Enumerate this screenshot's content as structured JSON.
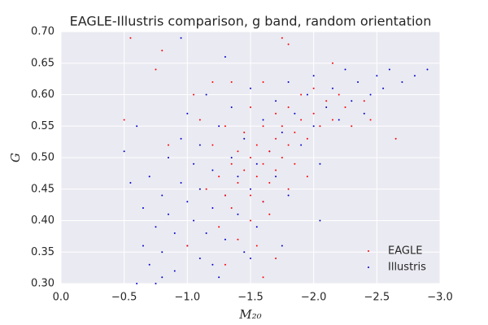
{
  "chart_data": {
    "type": "scatter",
    "title": "EAGLE-Illustris comparison, g band, random orientation",
    "xlabel": "M₂₀",
    "ylabel": "G",
    "xlim": [
      0,
      -3
    ],
    "ylim": [
      0.3,
      0.7
    ],
    "xticks": [
      {
        "value": 0,
        "label": "0.0"
      },
      {
        "value": -0.5,
        "label": "−0.5"
      },
      {
        "value": -1,
        "label": "−1.0"
      },
      {
        "value": -1.5,
        "label": "−1.5"
      },
      {
        "value": -2,
        "label": "−2.0"
      },
      {
        "value": -2.5,
        "label": "−2.5"
      },
      {
        "value": -3,
        "label": "−3.0"
      }
    ],
    "yticks": [
      {
        "value": 0.3,
        "label": "0.30"
      },
      {
        "value": 0.35,
        "label": "0.35"
      },
      {
        "value": 0.4,
        "label": "0.40"
      },
      {
        "value": 0.45,
        "label": "0.45"
      },
      {
        "value": 0.5,
        "label": "0.50"
      },
      {
        "value": 0.55,
        "label": "0.55"
      },
      {
        "value": 0.6,
        "label": "0.60"
      },
      {
        "value": 0.65,
        "label": "0.65"
      },
      {
        "value": 0.7,
        "label": "0.70"
      }
    ],
    "grid": true,
    "legend": "lower right",
    "series": [
      {
        "name": "EAGLE",
        "color": "#ff0000",
        "x": [
          -1.2,
          -1.25,
          -1.3,
          -1.3,
          -1.35,
          -1.35,
          -1.4,
          -1.4,
          -1.45,
          -1.45,
          -1.5,
          -1.5,
          -1.5,
          -1.55,
          -1.55,
          -1.6,
          -1.6,
          -1.6,
          -1.65,
          -1.65,
          -1.7,
          -1.7,
          -1.7,
          -1.75,
          -1.75,
          -1.8,
          -1.8,
          -1.85,
          -1.85,
          -1.9,
          -1.9,
          -1.95,
          -2.0,
          -2.0,
          -2.05,
          -2.1,
          -2.15,
          -2.2,
          -2.25,
          -1.1,
          -1.15,
          -1.25,
          -1.4,
          -1.55,
          -1.65,
          -1.8,
          -1.95,
          -1.2,
          -1.5,
          -0.85,
          -0.5,
          -0.55,
          -0.75,
          -0.8,
          -1.75,
          -1.8,
          -2.15,
          -2.45,
          -2.4,
          -2.65,
          -1.05,
          -1.0,
          -1.3,
          -1.6,
          -1.7,
          -2.3,
          -1.35,
          -1.6
        ],
        "y": [
          0.52,
          0.47,
          0.44,
          0.55,
          0.49,
          0.42,
          0.51,
          0.46,
          0.48,
          0.54,
          0.5,
          0.44,
          0.4,
          0.52,
          0.47,
          0.49,
          0.55,
          0.43,
          0.51,
          0.46,
          0.53,
          0.48,
          0.57,
          0.5,
          0.55,
          0.52,
          0.58,
          0.54,
          0.49,
          0.56,
          0.6,
          0.53,
          0.57,
          0.61,
          0.55,
          0.59,
          0.56,
          0.6,
          0.58,
          0.56,
          0.45,
          0.39,
          0.37,
          0.36,
          0.41,
          0.45,
          0.47,
          0.62,
          0.58,
          0.52,
          0.56,
          0.69,
          0.64,
          0.67,
          0.69,
          0.68,
          0.65,
          0.56,
          0.59,
          0.53,
          0.6,
          0.36,
          0.33,
          0.31,
          0.34,
          0.55,
          0.62,
          0.62
        ]
      },
      {
        "name": "Illustris",
        "color": "#0000cc",
        "x": [
          -0.5,
          -0.55,
          -0.6,
          -0.65,
          -0.65,
          -0.7,
          -0.7,
          -0.75,
          -0.75,
          -0.8,
          -0.8,
          -0.85,
          -0.85,
          -0.9,
          -0.9,
          -0.95,
          -0.95,
          -1.0,
          -1.0,
          -1.0,
          -1.05,
          -1.05,
          -1.1,
          -1.1,
          -1.1,
          -1.15,
          -1.15,
          -1.2,
          -1.2,
          -1.25,
          -1.25,
          -1.3,
          -1.3,
          -1.35,
          -1.35,
          -1.4,
          -1.4,
          -1.45,
          -1.45,
          -1.5,
          -1.5,
          -1.55,
          -1.55,
          -1.6,
          -1.6,
          -1.65,
          -1.7,
          -1.7,
          -1.75,
          -1.8,
          -1.8,
          -1.85,
          -1.9,
          -1.95,
          -2.0,
          -2.0,
          -2.05,
          -2.1,
          -2.15,
          -2.2,
          -2.25,
          -2.3,
          -2.35,
          -2.4,
          -2.45,
          -2.5,
          -2.55,
          -2.6,
          -2.7,
          -2.8,
          -2.9,
          -0.95,
          -1.3,
          -1.5,
          -1.75,
          -2.05,
          -0.6,
          -0.8,
          -1.2
        ],
        "y": [
          0.51,
          0.46,
          0.55,
          0.42,
          0.36,
          0.33,
          0.47,
          0.39,
          0.3,
          0.44,
          0.35,
          0.5,
          0.41,
          0.38,
          0.32,
          0.46,
          0.53,
          0.43,
          0.36,
          0.57,
          0.4,
          0.49,
          0.34,
          0.45,
          0.52,
          0.38,
          0.6,
          0.42,
          0.48,
          0.31,
          0.55,
          0.44,
          0.37,
          0.5,
          0.58,
          0.41,
          0.47,
          0.53,
          0.35,
          0.45,
          0.61,
          0.49,
          0.39,
          0.56,
          0.43,
          0.51,
          0.59,
          0.47,
          0.54,
          0.62,
          0.44,
          0.57,
          0.52,
          0.6,
          0.55,
          0.63,
          0.49,
          0.58,
          0.61,
          0.56,
          0.64,
          0.59,
          0.62,
          0.57,
          0.6,
          0.63,
          0.61,
          0.64,
          0.62,
          0.63,
          0.64,
          0.69,
          0.66,
          0.34,
          0.36,
          0.4,
          0.3,
          0.31,
          0.33
        ]
      }
    ]
  }
}
